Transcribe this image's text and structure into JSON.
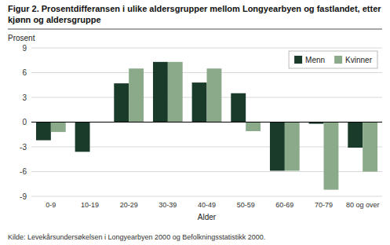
{
  "chart_data": {
    "type": "bar",
    "title": "Figur 2. Prosentdifferansen i ulike aldersgrupper mellom Longyearbyen og fastlandet, etter kjønn og aldersgruppe",
    "xlabel": "Alder",
    "ylabel": "Prosent",
    "annotations": [
      "Kilde: Levekårsundersøkelsen i Longyearbyen 2000 og Befolkningsstatistikk 2000."
    ],
    "categories": [
      "0-9",
      "10-19",
      "20-29",
      "30-39",
      "40-49",
      "50-59",
      "60-69",
      "70-79",
      "80 og over"
    ],
    "series": [
      {
        "name": "Menn",
        "color": "#1a3a2a",
        "values": [
          -2.2,
          -3.6,
          4.7,
          7.3,
          4.8,
          3.5,
          -5.9,
          -0.2,
          -3.1
        ]
      },
      {
        "name": "Kvinner",
        "color": "#8aaa8a",
        "values": [
          -1.2,
          0.0,
          6.5,
          7.3,
          6.5,
          -1.1,
          -5.9,
          -8.2,
          -6.0
        ]
      }
    ],
    "ylim": [
      -9,
      9
    ],
    "yticks": [
      -9,
      -6,
      -3,
      0,
      3,
      6,
      9
    ],
    "grid": true,
    "legend": "upper right"
  }
}
